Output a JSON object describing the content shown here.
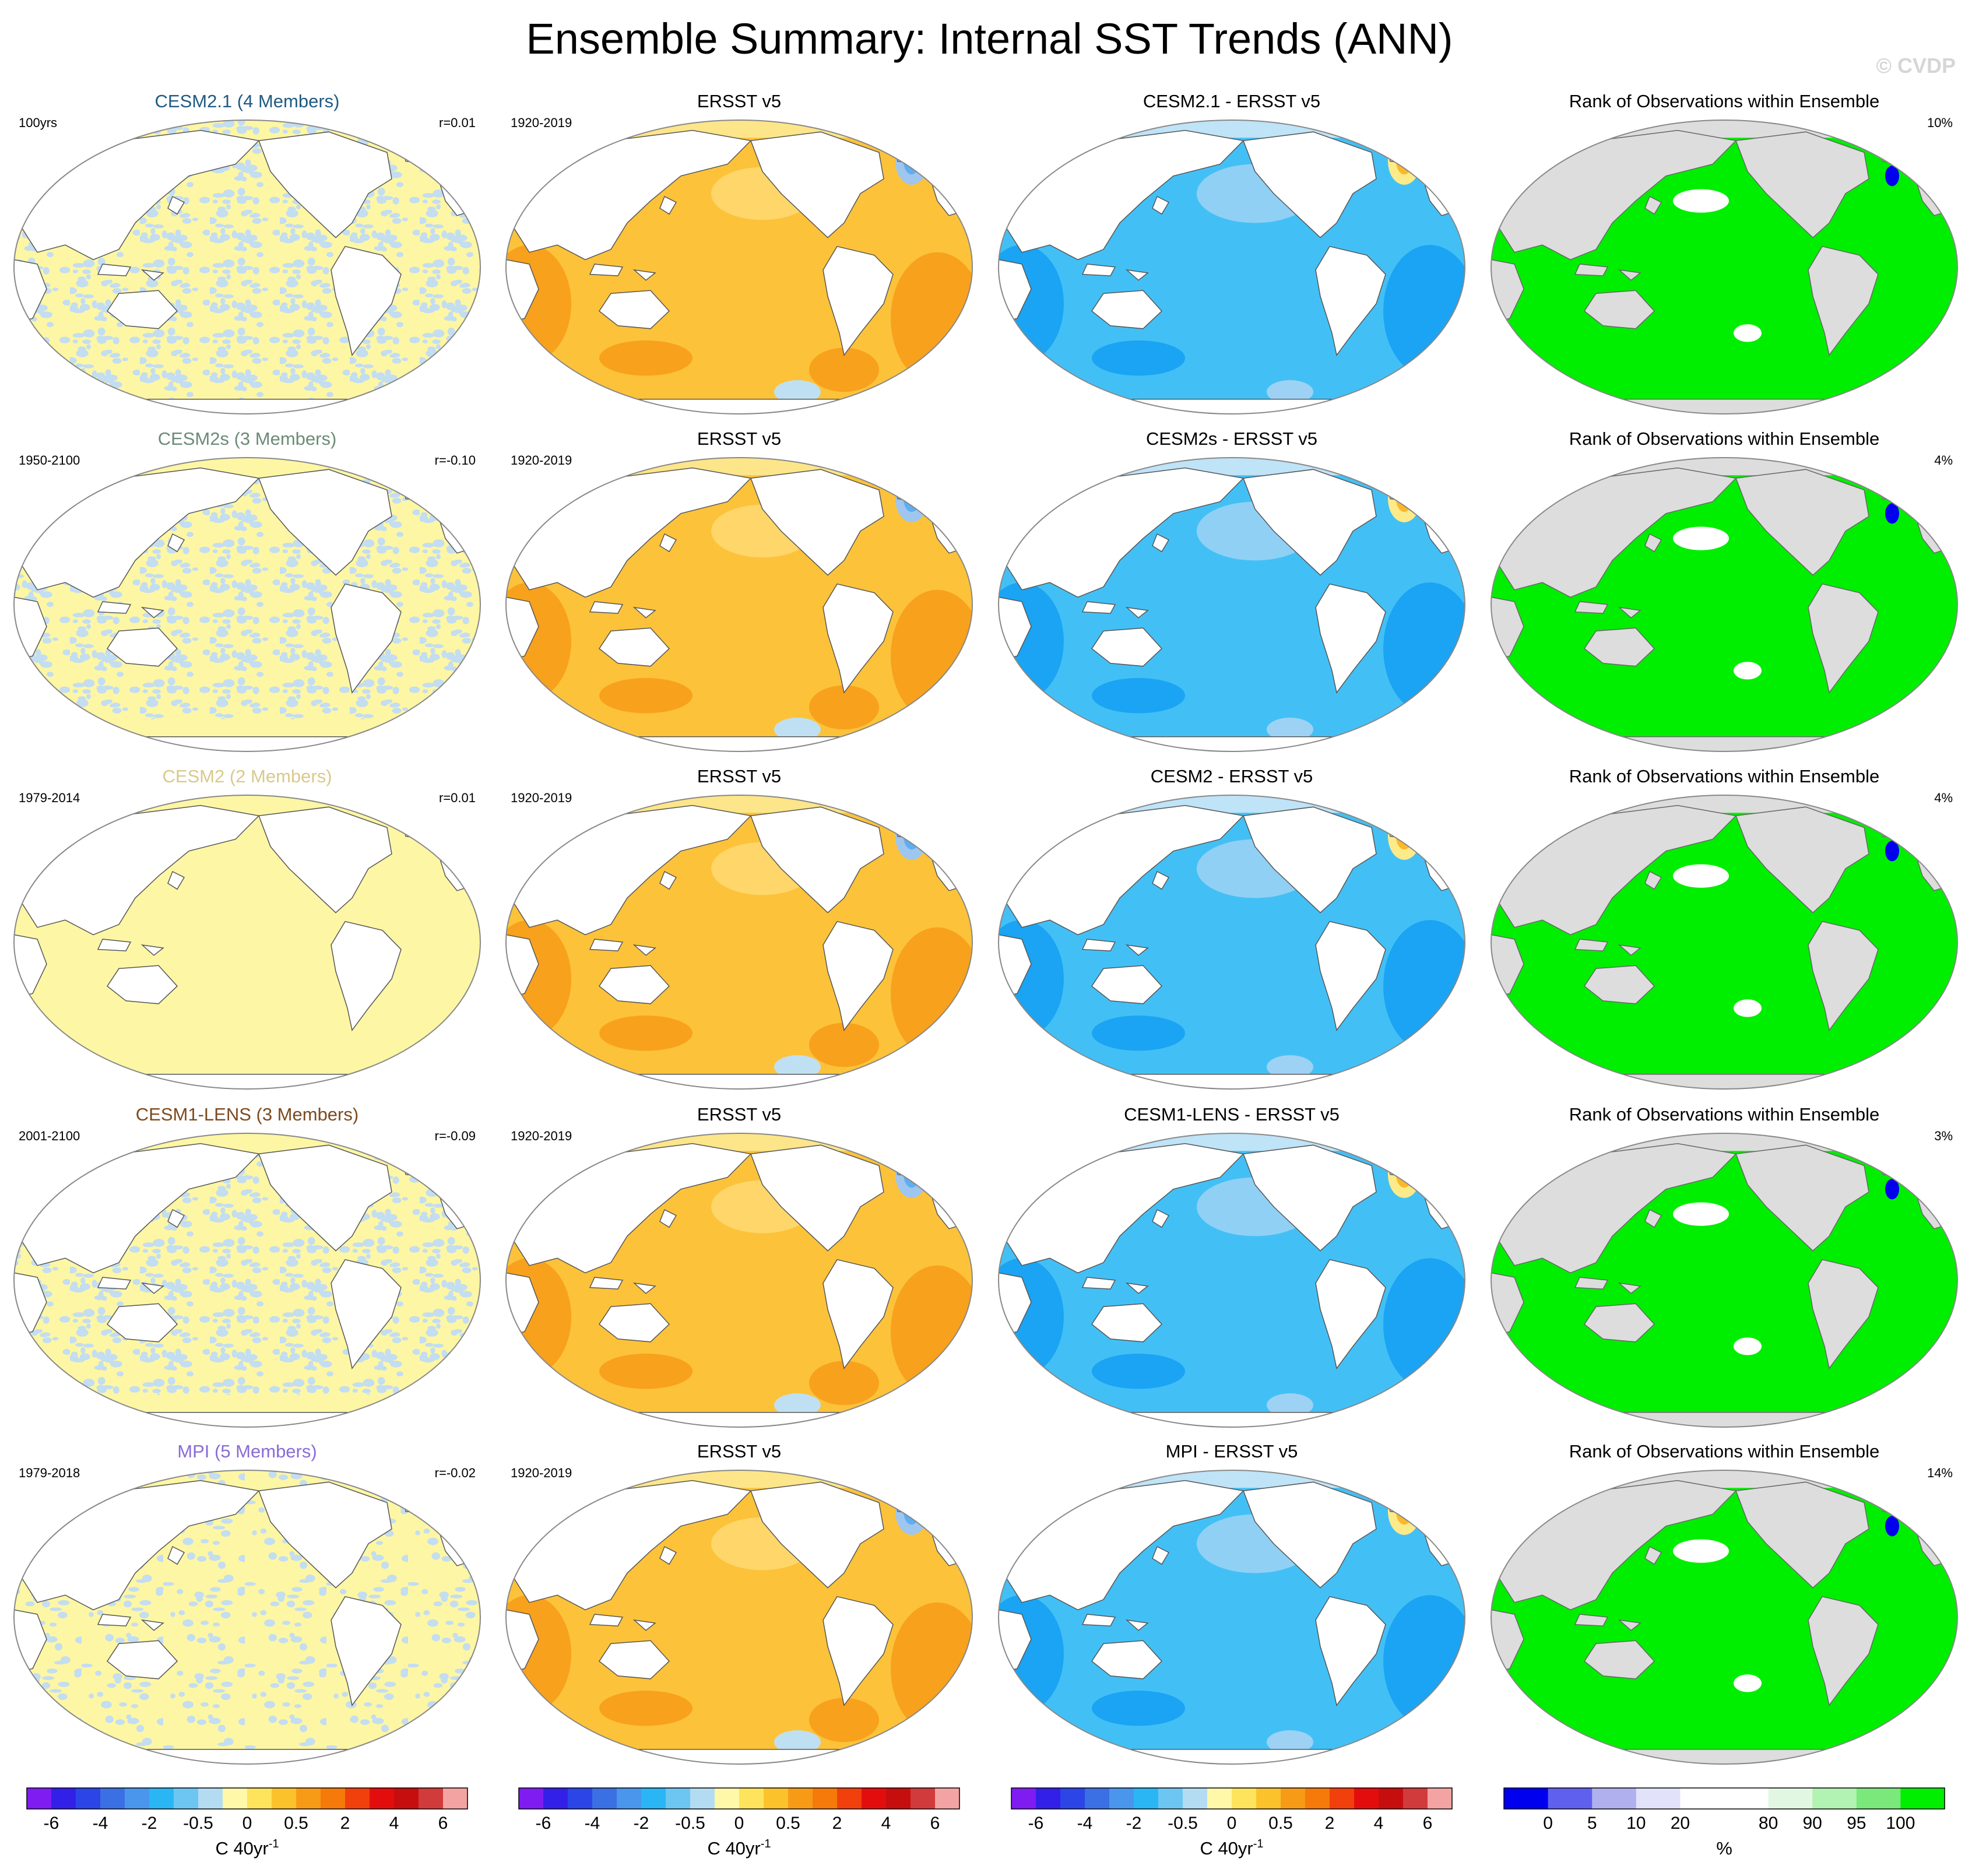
{
  "title": "Ensemble Summary: Internal SST Trends (ANN)",
  "watermark": "© CVDP",
  "colors": {
    "land": "#ffffff",
    "land_rank": "#dddddd",
    "ocean_model": "#fdf6a4",
    "ocean_model_spot": "#c3ddf1",
    "ocean_obs": "#fcc23a",
    "ocean_obs_warm": "#f8a11c",
    "ocean_obs_warm2": "#fed86f",
    "ocean_obs_cold": "#5eaef0",
    "ocean_diff": "#42c0f6",
    "ocean_diff_dark": "#1aa4f3",
    "ocean_diff_light": "#9dd2f4",
    "ocean_diff_warm": "#fcd339",
    "ocean_rank": "#00ee00",
    "rank_low": "#0000ee",
    "outline": "#888888"
  },
  "rows": [
    {
      "model": {
        "title": "CESM2.1 (4 Members)",
        "title_color": "#1f5a82",
        "left": "100yrs",
        "right": "r=0.01",
        "style": "speckle"
      },
      "obs": {
        "title": "ERSST v5",
        "left": "1920-2019"
      },
      "diff": {
        "title": "CESM2.1 - ERSST v5"
      },
      "rank": {
        "title": "Rank of Observations within Ensemble",
        "right": "10%"
      }
    },
    {
      "model": {
        "title": "CESM2s (3 Members)",
        "title_color": "#6a8c76",
        "left": "1950-2100",
        "right": "r=-0.10",
        "style": "speckle-band"
      },
      "obs": {
        "title": "ERSST v5",
        "left": "1920-2019"
      },
      "diff": {
        "title": "CESM2s - ERSST v5"
      },
      "rank": {
        "title": "Rank of Observations within Ensemble",
        "right": "4%"
      }
    },
    {
      "model": {
        "title": "CESM2 (2 Members)",
        "title_color": "#d9c98b",
        "left": "1979-2014",
        "right": "r=0.01",
        "style": "uniform"
      },
      "obs": {
        "title": "ERSST v5",
        "left": "1920-2019"
      },
      "diff": {
        "title": "CESM2 - ERSST v5"
      },
      "rank": {
        "title": "Rank of Observations within Ensemble",
        "right": "4%"
      }
    },
    {
      "model": {
        "title": "CESM1-LENS (3 Members)",
        "title_color": "#7c4a1e",
        "left": "2001-2100",
        "right": "r=-0.09",
        "style": "speckle-band"
      },
      "obs": {
        "title": "ERSST v5",
        "left": "1920-2019"
      },
      "diff": {
        "title": "CESM1-LENS - ERSST v5"
      },
      "rank": {
        "title": "Rank of Observations within Ensemble",
        "right": "3%"
      }
    },
    {
      "model": {
        "title": "MPI (5 Members)",
        "title_color": "#8a6bd6",
        "left": "1979-2018",
        "right": "r=-0.02",
        "style": "speckle-coarse"
      },
      "obs": {
        "title": "ERSST v5",
        "left": "1920-2019"
      },
      "diff": {
        "title": "MPI - ERSST v5"
      },
      "rank": {
        "title": "Rank of Observations within Ensemble",
        "right": "14%"
      }
    }
  ],
  "colorbars": {
    "trend": {
      "colors": [
        "#7e1cf2",
        "#3320e8",
        "#2b45e6",
        "#3b6fe4",
        "#4996ec",
        "#2ab6f5",
        "#6dc6f2",
        "#b3dcf2",
        "#fef8a8",
        "#fde45c",
        "#fbc22c",
        "#f79b17",
        "#f57a0a",
        "#f1400c",
        "#e40d0d",
        "#c70e0e",
        "#d13b3b",
        "#f4a3a3"
      ],
      "labels": [
        "-6",
        "-4",
        "-2",
        "-0.5",
        "0",
        "0.5",
        "2",
        "4",
        "6"
      ],
      "label_positions": [
        1,
        3,
        5,
        7,
        9,
        11,
        13,
        15,
        17
      ],
      "unit": "C 40yr",
      "unit_superscript": "-1"
    },
    "rank": {
      "colors": [
        "#0000ee",
        "#6060ee",
        "#b0b0ee",
        "#e2e2fa",
        "#ffffff",
        "#ffffff",
        "#e2f7e2",
        "#b2f2b2",
        "#7ae87a",
        "#00ee00"
      ],
      "labels": [
        "0",
        "5",
        "10",
        "20",
        "80",
        "90",
        "95",
        "100"
      ],
      "label_positions": [
        1,
        2,
        3,
        4,
        6,
        7,
        8,
        9
      ],
      "unit": "%"
    }
  }
}
